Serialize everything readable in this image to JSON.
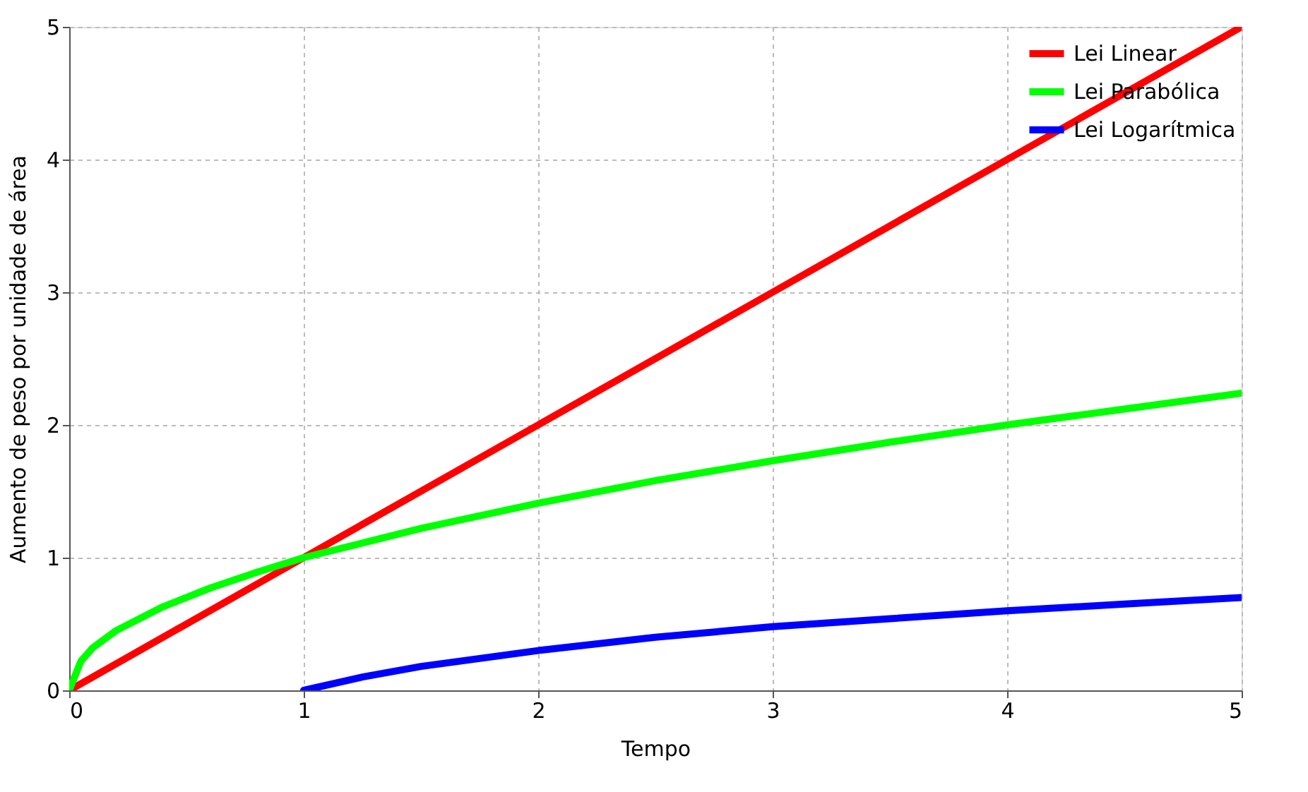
{
  "chart_data": {
    "type": "line",
    "xlabel": "Tempo",
    "ylabel": "Aumento de peso por unidade de área",
    "xlim": [
      0,
      5
    ],
    "ylim": [
      0,
      5
    ],
    "xticks": [
      0,
      1,
      2,
      3,
      4,
      5
    ],
    "yticks": [
      0,
      1,
      2,
      3,
      4,
      5
    ],
    "grid": true,
    "legend": "top right",
    "marker": "none",
    "line_style": "solid",
    "series": [
      {
        "name": "Lei Linear",
        "color": "#ff0000",
        "x": [
          0,
          1,
          2,
          3,
          4,
          5
        ],
        "values": [
          0,
          1,
          2,
          3,
          4,
          5
        ]
      },
      {
        "name": "Lei Parabólica",
        "color": "#00ff00",
        "x": [
          0,
          0.05,
          0.1,
          0.2,
          0.4,
          0.6,
          0.8,
          1,
          1.5,
          2,
          2.5,
          3,
          3.5,
          4,
          4.5,
          5
        ],
        "values": [
          0,
          0.22,
          0.32,
          0.45,
          0.63,
          0.77,
          0.89,
          1,
          1.22,
          1.41,
          1.58,
          1.73,
          1.87,
          2,
          2.12,
          2.24
        ]
      },
      {
        "name": "Lei Logarítmica",
        "color": "#0000ff",
        "x": [
          1,
          1.25,
          1.5,
          2,
          2.5,
          3,
          3.5,
          4,
          4.5,
          5
        ],
        "values": [
          0,
          0.1,
          0.18,
          0.3,
          0.4,
          0.48,
          0.54,
          0.6,
          0.65,
          0.7
        ]
      }
    ]
  }
}
